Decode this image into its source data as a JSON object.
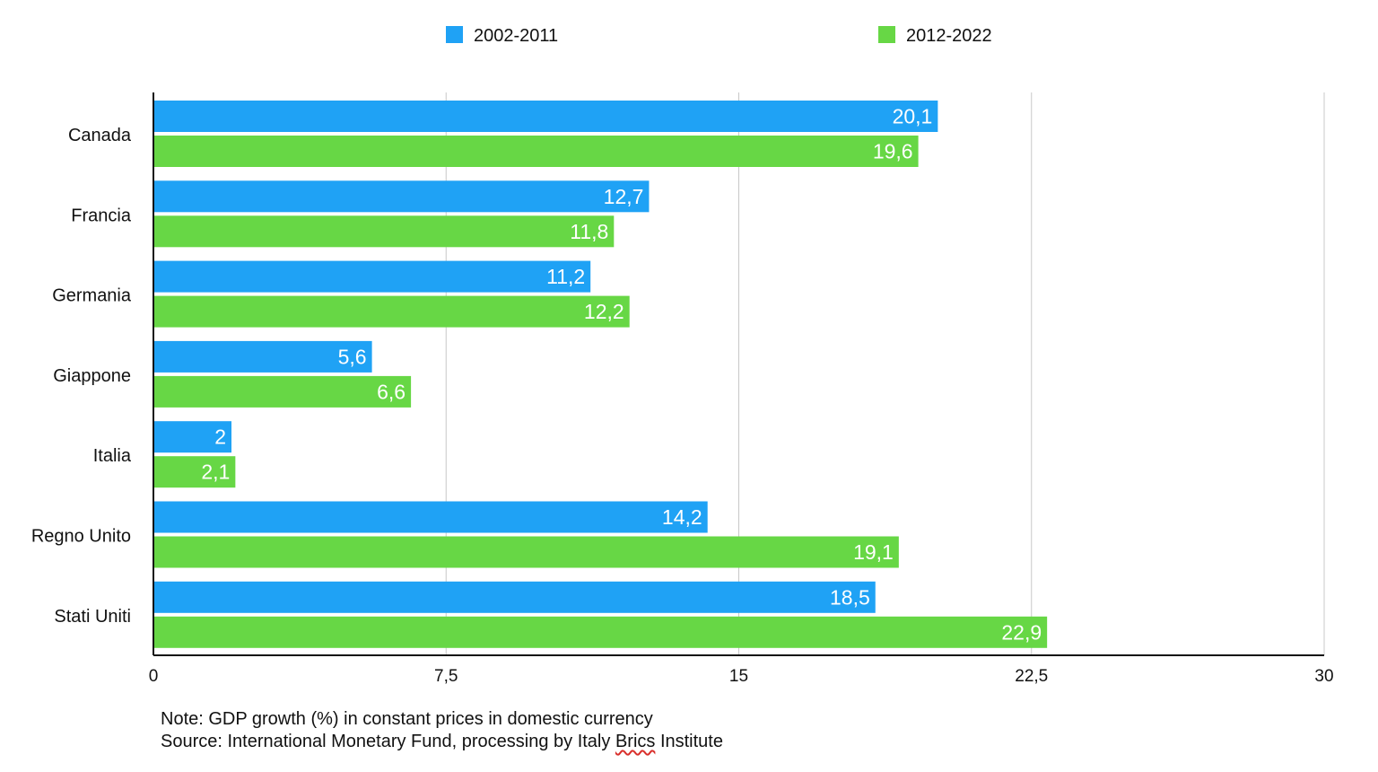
{
  "chart_data": {
    "type": "bar",
    "orientation": "horizontal",
    "categories": [
      "Canada",
      "Francia",
      "Germania",
      "Giappone",
      "Italia",
      "Regno Unito",
      "Stati Uniti"
    ],
    "series": [
      {
        "name": "2002-2011",
        "color": "#1fa2f5",
        "values": [
          20.1,
          12.7,
          11.2,
          5.6,
          2,
          14.2,
          18.5
        ],
        "labels": [
          "20,1",
          "12,7",
          "11,2",
          "5,6",
          "2",
          "14,2",
          "18,5"
        ]
      },
      {
        "name": "2012-2022",
        "color": "#67d745",
        "values": [
          19.6,
          11.8,
          12.2,
          6.6,
          2.1,
          19.1,
          22.9
        ],
        "labels": [
          "19,6",
          "11,8",
          "12,2",
          "6,6",
          "2,1",
          "19,1",
          "22,9"
        ]
      }
    ],
    "xlim": [
      0,
      30
    ],
    "xticks": [
      0,
      7.5,
      15,
      22.5,
      30
    ],
    "xtick_labels": [
      "0",
      "7,5",
      "15",
      "22,5",
      "30"
    ],
    "grid": true,
    "legend_position": "top-center"
  },
  "notes": {
    "line1": "Note: GDP growth (%) in constant prices in domestic currency",
    "line2_prefix": "Source: International Monetary Fund, processing by Italy ",
    "line2_highlight": "Brics",
    "line2_suffix": " Institute"
  }
}
